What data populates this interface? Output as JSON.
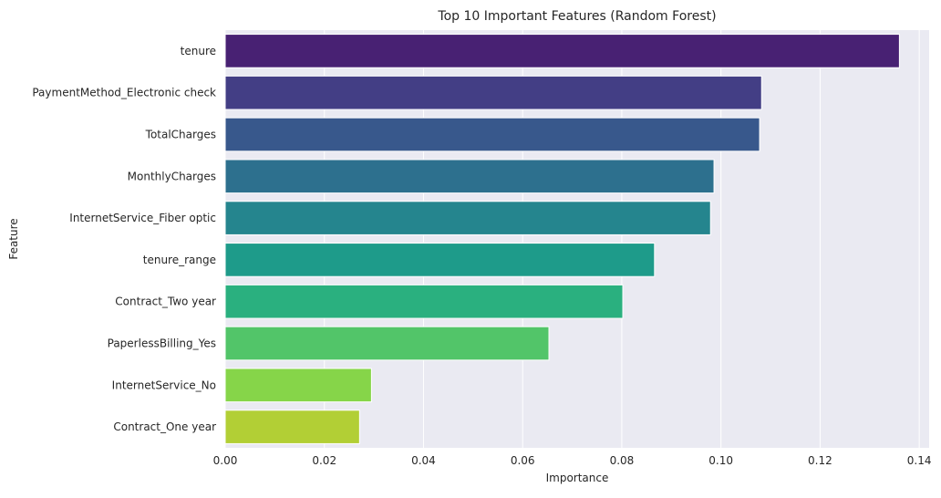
{
  "chart_data": {
    "type": "bar",
    "orientation": "horizontal",
    "title": "Top 10 Important Features (Random Forest)",
    "xlabel": "Importance",
    "ylabel": "Feature",
    "xlim": [
      0,
      0.142
    ],
    "xticks": [
      0.0,
      0.02,
      0.04,
      0.06,
      0.08,
      0.1,
      0.12,
      0.14
    ],
    "xtick_labels": [
      "0.00",
      "0.02",
      "0.04",
      "0.06",
      "0.08",
      "0.10",
      "0.12",
      "0.14"
    ],
    "grid": true,
    "background": "#eaeaf2",
    "categories": [
      "tenure",
      "PaymentMethod_Electronic check",
      "TotalCharges",
      "MonthlyCharges",
      "InternetService_Fiber optic",
      "tenure_range",
      "Contract_Two year",
      "PaperlessBilling_Yes",
      "InternetService_No",
      "Contract_One year"
    ],
    "values": [
      0.136,
      0.1082,
      0.1078,
      0.0986,
      0.0979,
      0.0866,
      0.0802,
      0.0653,
      0.0295,
      0.0271
    ],
    "colors": [
      "#482173",
      "#433e85",
      "#38588c",
      "#2d708e",
      "#25858e",
      "#1e9b8a",
      "#2ab07f",
      "#52c569",
      "#86d549",
      "#b2cf35"
    ]
  }
}
